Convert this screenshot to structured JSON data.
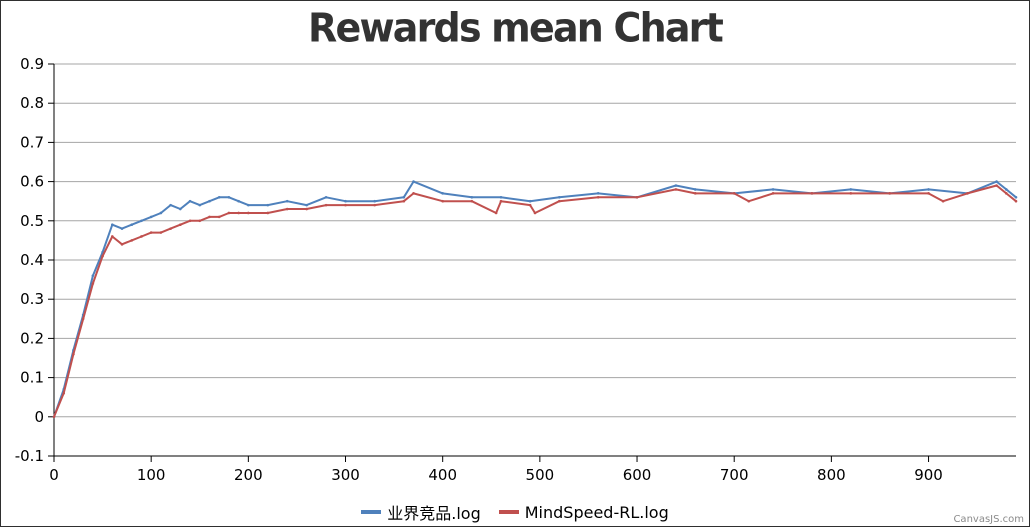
{
  "colors": {
    "series_1": "#4f81bc",
    "series_2": "#c0504e",
    "grid": "#a5a5a5",
    "axis": "#000000"
  },
  "credit": "CanvasJS.com",
  "chart_data": {
    "type": "line",
    "title": "Rewards mean Chart",
    "xlabel": "",
    "ylabel": "",
    "xlim": [
      0,
      990
    ],
    "ylim": [
      -0.1,
      0.9
    ],
    "x_ticks": [
      "0",
      "100",
      "200",
      "300",
      "400",
      "500",
      "600",
      "700",
      "800",
      "900"
    ],
    "y_ticks": [
      "-0.1",
      "0",
      "0.1",
      "0.2",
      "0.3",
      "0.4",
      "0.5",
      "0.6",
      "0.7",
      "0.8",
      "0.9"
    ],
    "grid": true,
    "legend": "bottom",
    "series": [
      {
        "name": "业界竞品.log",
        "color": "#4f81bc",
        "x": [
          0,
          10,
          20,
          30,
          40,
          50,
          60,
          70,
          80,
          90,
          100,
          110,
          120,
          130,
          140,
          150,
          160,
          170,
          180,
          190,
          200,
          220,
          240,
          260,
          280,
          300,
          330,
          360,
          370,
          400,
          430,
          460,
          490,
          520,
          560,
          600,
          640,
          660,
          700,
          740,
          780,
          820,
          860,
          900,
          940,
          970,
          980,
          990
        ],
        "y": [
          0.0,
          0.07,
          0.17,
          0.26,
          0.36,
          0.42,
          0.49,
          0.48,
          0.49,
          0.5,
          0.51,
          0.52,
          0.54,
          0.53,
          0.55,
          0.54,
          0.55,
          0.56,
          0.56,
          0.55,
          0.54,
          0.54,
          0.55,
          0.54,
          0.56,
          0.55,
          0.55,
          0.56,
          0.6,
          0.57,
          0.56,
          0.56,
          0.55,
          0.56,
          0.57,
          0.56,
          0.59,
          0.58,
          0.57,
          0.58,
          0.57,
          0.58,
          0.57,
          0.58,
          0.57,
          0.6,
          0.58,
          0.56
        ]
      },
      {
        "name": "MindSpeed-RL.log",
        "color": "#c0504e",
        "x": [
          0,
          10,
          20,
          30,
          40,
          50,
          60,
          70,
          80,
          90,
          100,
          110,
          120,
          130,
          140,
          150,
          160,
          170,
          180,
          190,
          200,
          220,
          240,
          260,
          280,
          300,
          330,
          360,
          370,
          400,
          430,
          455,
          460,
          490,
          495,
          520,
          560,
          600,
          640,
          660,
          700,
          715,
          740,
          780,
          820,
          860,
          900,
          915,
          940,
          970,
          980,
          990
        ],
        "y": [
          0.0,
          0.06,
          0.16,
          0.25,
          0.34,
          0.41,
          0.46,
          0.44,
          0.45,
          0.46,
          0.47,
          0.47,
          0.48,
          0.49,
          0.5,
          0.5,
          0.51,
          0.51,
          0.52,
          0.52,
          0.52,
          0.52,
          0.53,
          0.53,
          0.54,
          0.54,
          0.54,
          0.55,
          0.57,
          0.55,
          0.55,
          0.52,
          0.55,
          0.54,
          0.52,
          0.55,
          0.56,
          0.56,
          0.58,
          0.57,
          0.57,
          0.55,
          0.57,
          0.57,
          0.57,
          0.57,
          0.57,
          0.55,
          0.57,
          0.59,
          0.57,
          0.55
        ]
      }
    ]
  }
}
